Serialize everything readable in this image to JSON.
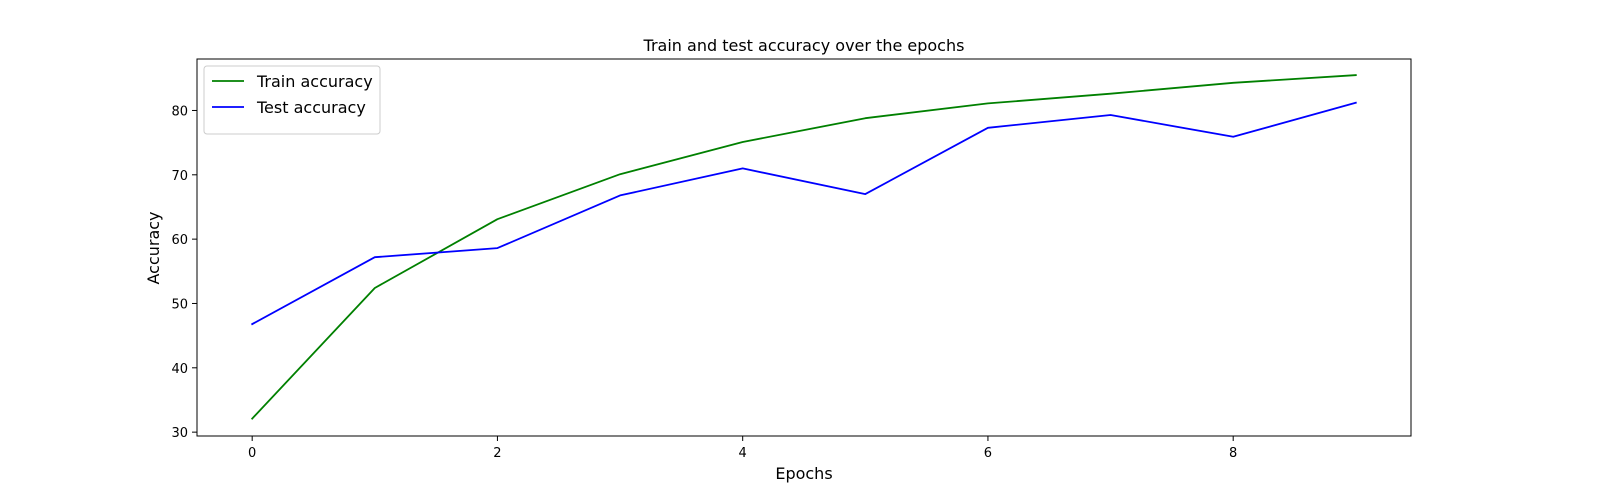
{
  "chart_data": {
    "type": "line",
    "title": "Train and test accuracy over the epochs",
    "xlabel": "Epochs",
    "ylabel": "Accuracy",
    "x": [
      0,
      1,
      2,
      3,
      4,
      5,
      6,
      7,
      8,
      9
    ],
    "series": [
      {
        "name": "Train accuracy",
        "color": "#008000",
        "values": [
          32.1,
          52.4,
          63.1,
          70.1,
          75.1,
          78.8,
          81.1,
          82.6,
          84.3,
          85.5
        ]
      },
      {
        "name": "Test accuracy",
        "color": "#0000ff",
        "values": [
          46.8,
          57.2,
          58.6,
          66.8,
          71.0,
          67.0,
          77.3,
          79.3,
          75.9,
          81.2
        ]
      }
    ],
    "xlim": [
      -0.45,
      9.45
    ],
    "ylim": [
      29.4,
      88.0
    ],
    "xticks": [
      0,
      2,
      4,
      6,
      8
    ],
    "yticks": [
      30,
      40,
      50,
      60,
      70,
      80
    ],
    "grid": false,
    "legend_position": "top-left"
  }
}
